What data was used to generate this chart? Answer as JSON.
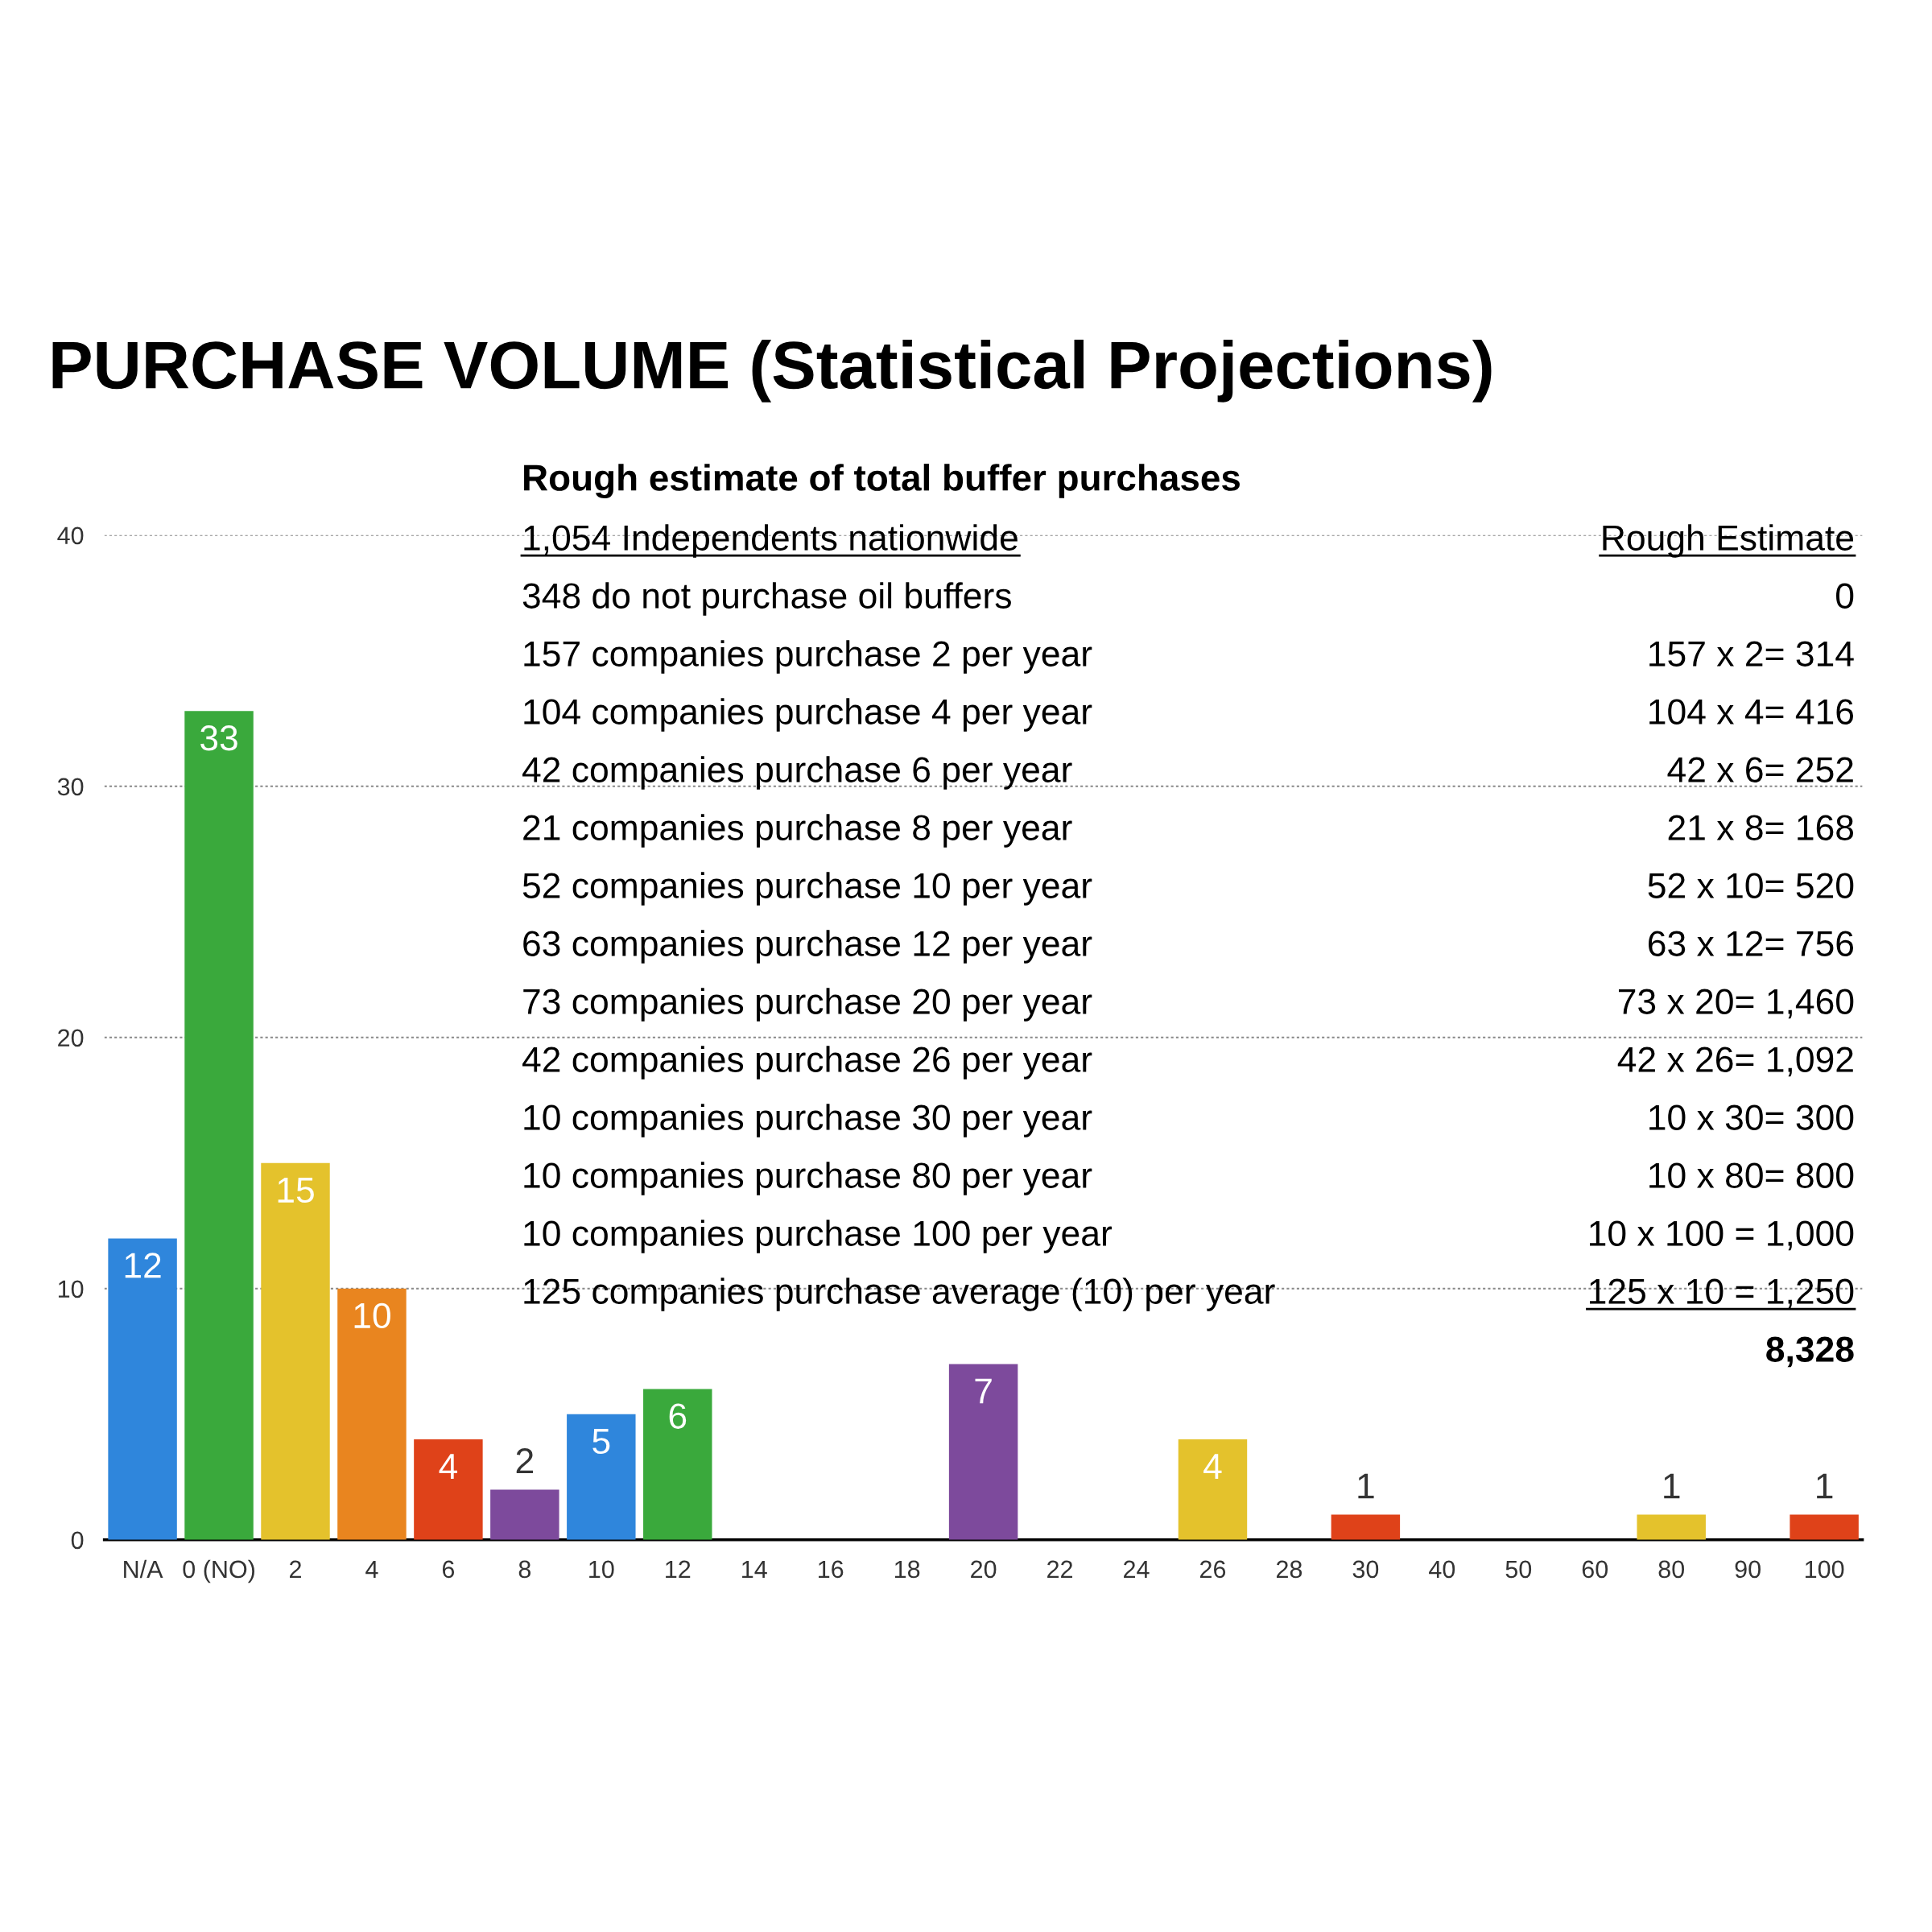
{
  "chart_data": {
    "type": "bar",
    "title": "PURCHASE VOLUME (Statistical Projections)",
    "subtitle": "Rough estimate of total buffer purchases",
    "categories": [
      "N/A",
      "0 (NO)",
      "2",
      "4",
      "6",
      "8",
      "10",
      "12",
      "14",
      "16",
      "18",
      "20",
      "22",
      "24",
      "26",
      "28",
      "30",
      "40",
      "50",
      "60",
      "80",
      "90",
      "100"
    ],
    "values": [
      12,
      33,
      15,
      10,
      4,
      2,
      5,
      6,
      0,
      0,
      0,
      7,
      0,
      0,
      4,
      0,
      1,
      0,
      0,
      0,
      1,
      0,
      1
    ],
    "value_labels": [
      "12",
      "33",
      "15",
      "10",
      "4",
      "2",
      "5",
      "6",
      null,
      null,
      null,
      "7",
      null,
      null,
      "4",
      null,
      "1",
      null,
      null,
      null,
      "1",
      null,
      "1"
    ],
    "colors": [
      "#2f86dc",
      "#3aa93c",
      "#e4c22c",
      "#e9851f",
      "#df4219",
      "#7d4a9c",
      "#2f86dc",
      "#3aa93c",
      "#e4c22c",
      "#e9851f",
      "#df4219",
      "#7d4a9c",
      "#2f86dc",
      "#3aa93c",
      "#e4c22c",
      "#e9851f",
      "#df4219",
      "#7d4a9c",
      "#2f86dc",
      "#3aa93c",
      "#e4c22c",
      "#e9851f",
      "#df4219"
    ],
    "ylim": [
      0,
      40
    ],
    "yticks": [
      0,
      10,
      20,
      30,
      40
    ],
    "grid": "y",
    "annotations": [
      "1,054 Independents nationwide",
      "Rough Estimate",
      "348 do not purchase oil buffers",
      "0",
      "157 companies purchase 2 per year",
      "157 x 2= 314",
      "104 companies purchase 4 per year",
      "104 x 4= 416",
      "42 companies purchase 6 per year",
      "42 x 6= 252",
      "21 companies purchase 8 per year",
      "21 x 8= 168",
      "52 companies purchase 10 per year",
      "52 x 10= 520",
      "63 companies purchase 12 per year",
      "63 x 12= 756",
      "73 companies purchase 20 per year",
      "73 x 20= 1,460",
      "42 companies purchase 26 per year",
      "42 x 26= 1,092",
      "10 companies purchase 30 per year",
      "10 x 30= 300",
      "10 companies purchase 80 per year",
      "10 x 80= 800",
      "10 companies purchase 100 per year",
      "10 x 100 = 1,000",
      "125 companies purchase average (10) per year",
      "125 x 10 = 1,250",
      "8,328"
    ]
  }
}
